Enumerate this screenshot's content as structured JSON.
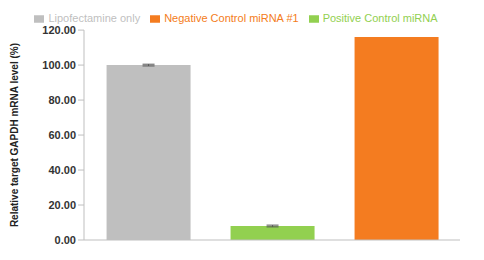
{
  "chart_data": {
    "type": "bar",
    "ylabel": "Relative target GAPDH mRNA level (%)",
    "categories": [
      null
    ],
    "series": [
      {
        "name": "Lipofectamine only",
        "color": "#bfbfbf",
        "values": [
          100
        ],
        "errors": [
          0.5
        ]
      },
      {
        "name": "Positive Control miRNA",
        "color": "#92d050",
        "values": [
          8
        ],
        "errors": [
          0.5
        ]
      },
      {
        "name": "Negative Control miRNA #1",
        "color": "#f47c20",
        "values": [
          116
        ]
      }
    ],
    "ylim": [
      0,
      120
    ],
    "yticks": [
      {
        "value": 0,
        "label": "0.00"
      },
      {
        "value": 20,
        "label": "20.00"
      },
      {
        "value": 40,
        "label": "40.00"
      },
      {
        "value": 60,
        "label": "60.00"
      },
      {
        "value": 80,
        "label": "80.00"
      },
      {
        "value": 100,
        "label": "100.00"
      },
      {
        "value": 120,
        "label": "120.00"
      }
    ],
    "legend": "top",
    "tick_labels": "y"
  }
}
